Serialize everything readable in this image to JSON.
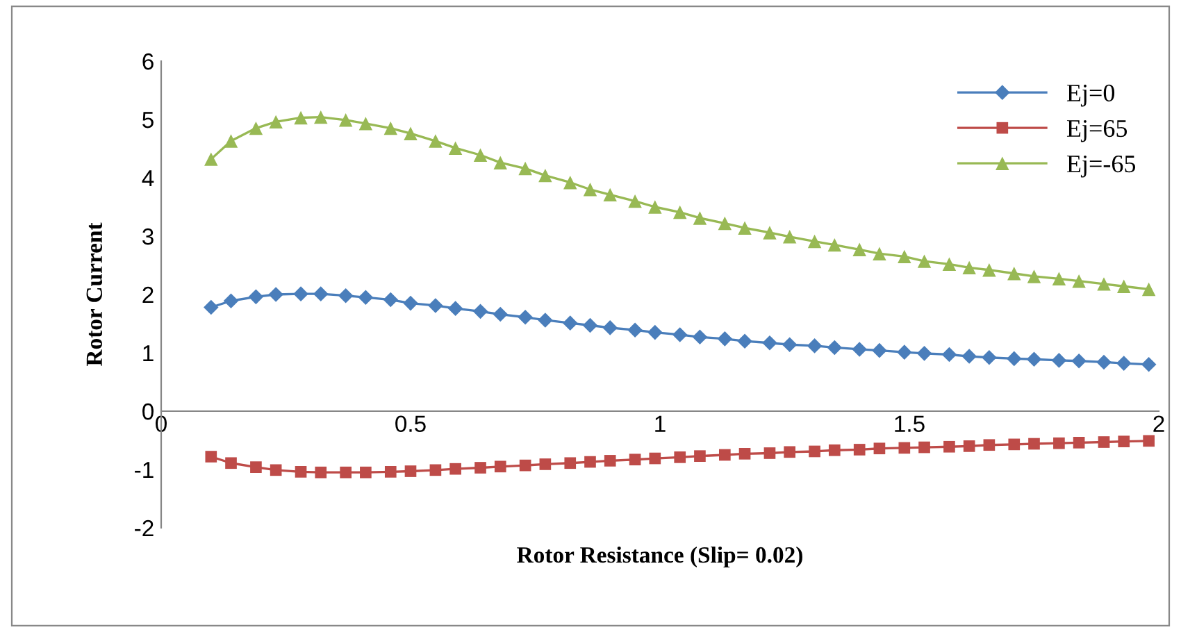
{
  "chart_data": {
    "type": "line",
    "xlabel": "Rotor Resistance (Slip= 0.02)",
    "ylabel": "Rotor Current",
    "x": [
      0.1,
      0.14,
      0.19,
      0.23,
      0.28,
      0.32,
      0.37,
      0.41,
      0.46,
      0.5,
      0.55,
      0.59,
      0.64,
      0.68,
      0.73,
      0.77,
      0.82,
      0.86,
      0.9,
      0.95,
      0.99,
      1.04,
      1.08,
      1.13,
      1.17,
      1.22,
      1.26,
      1.31,
      1.35,
      1.4,
      1.44,
      1.49,
      1.53,
      1.58,
      1.62,
      1.66,
      1.71,
      1.75,
      1.8,
      1.84,
      1.89,
      1.93,
      1.98
    ],
    "series": [
      {
        "name": "Ej=0",
        "color": "#4a7ebb",
        "marker": "diamond",
        "values": [
          1.78,
          1.89,
          1.96,
          2.0,
          2.01,
          2.01,
          1.98,
          1.95,
          1.91,
          1.85,
          1.81,
          1.76,
          1.71,
          1.66,
          1.61,
          1.56,
          1.51,
          1.47,
          1.43,
          1.39,
          1.35,
          1.31,
          1.27,
          1.24,
          1.2,
          1.17,
          1.14,
          1.12,
          1.09,
          1.06,
          1.04,
          1.01,
          0.99,
          0.97,
          0.94,
          0.92,
          0.9,
          0.89,
          0.87,
          0.86,
          0.84,
          0.82,
          0.8
        ]
      },
      {
        "name": "Ej=65",
        "color": "#be4b48",
        "marker": "square",
        "values": [
          -0.78,
          -0.89,
          -0.96,
          -1.01,
          -1.04,
          -1.05,
          -1.05,
          -1.05,
          -1.04,
          -1.03,
          -1.01,
          -0.99,
          -0.97,
          -0.95,
          -0.93,
          -0.91,
          -0.89,
          -0.87,
          -0.85,
          -0.83,
          -0.81,
          -0.79,
          -0.77,
          -0.75,
          -0.73,
          -0.72,
          -0.7,
          -0.69,
          -0.67,
          -0.66,
          -0.64,
          -0.63,
          -0.62,
          -0.61,
          -0.6,
          -0.58,
          -0.57,
          -0.56,
          -0.55,
          -0.54,
          -0.53,
          -0.52,
          -0.51
        ]
      },
      {
        "name": "Ej=-65",
        "color": "#98b954",
        "marker": "triangle",
        "values": [
          4.32,
          4.63,
          4.85,
          4.96,
          5.03,
          5.04,
          4.99,
          4.93,
          4.85,
          4.76,
          4.63,
          4.51,
          4.39,
          4.26,
          4.16,
          4.04,
          3.92,
          3.8,
          3.71,
          3.6,
          3.5,
          3.41,
          3.31,
          3.22,
          3.14,
          3.06,
          2.99,
          2.91,
          2.85,
          2.77,
          2.7,
          2.65,
          2.57,
          2.52,
          2.46,
          2.42,
          2.36,
          2.31,
          2.27,
          2.23,
          2.18,
          2.14,
          2.09
        ]
      }
    ],
    "xlim": [
      0,
      2
    ],
    "xticks": [
      0,
      0.5,
      1,
      1.5,
      2
    ],
    "ylim": [
      -2,
      6
    ],
    "yticks": [
      -2,
      -1,
      0,
      1,
      2,
      3,
      4,
      5,
      6
    ],
    "grid": false,
    "legend": "top right",
    "line_style": "solid"
  }
}
